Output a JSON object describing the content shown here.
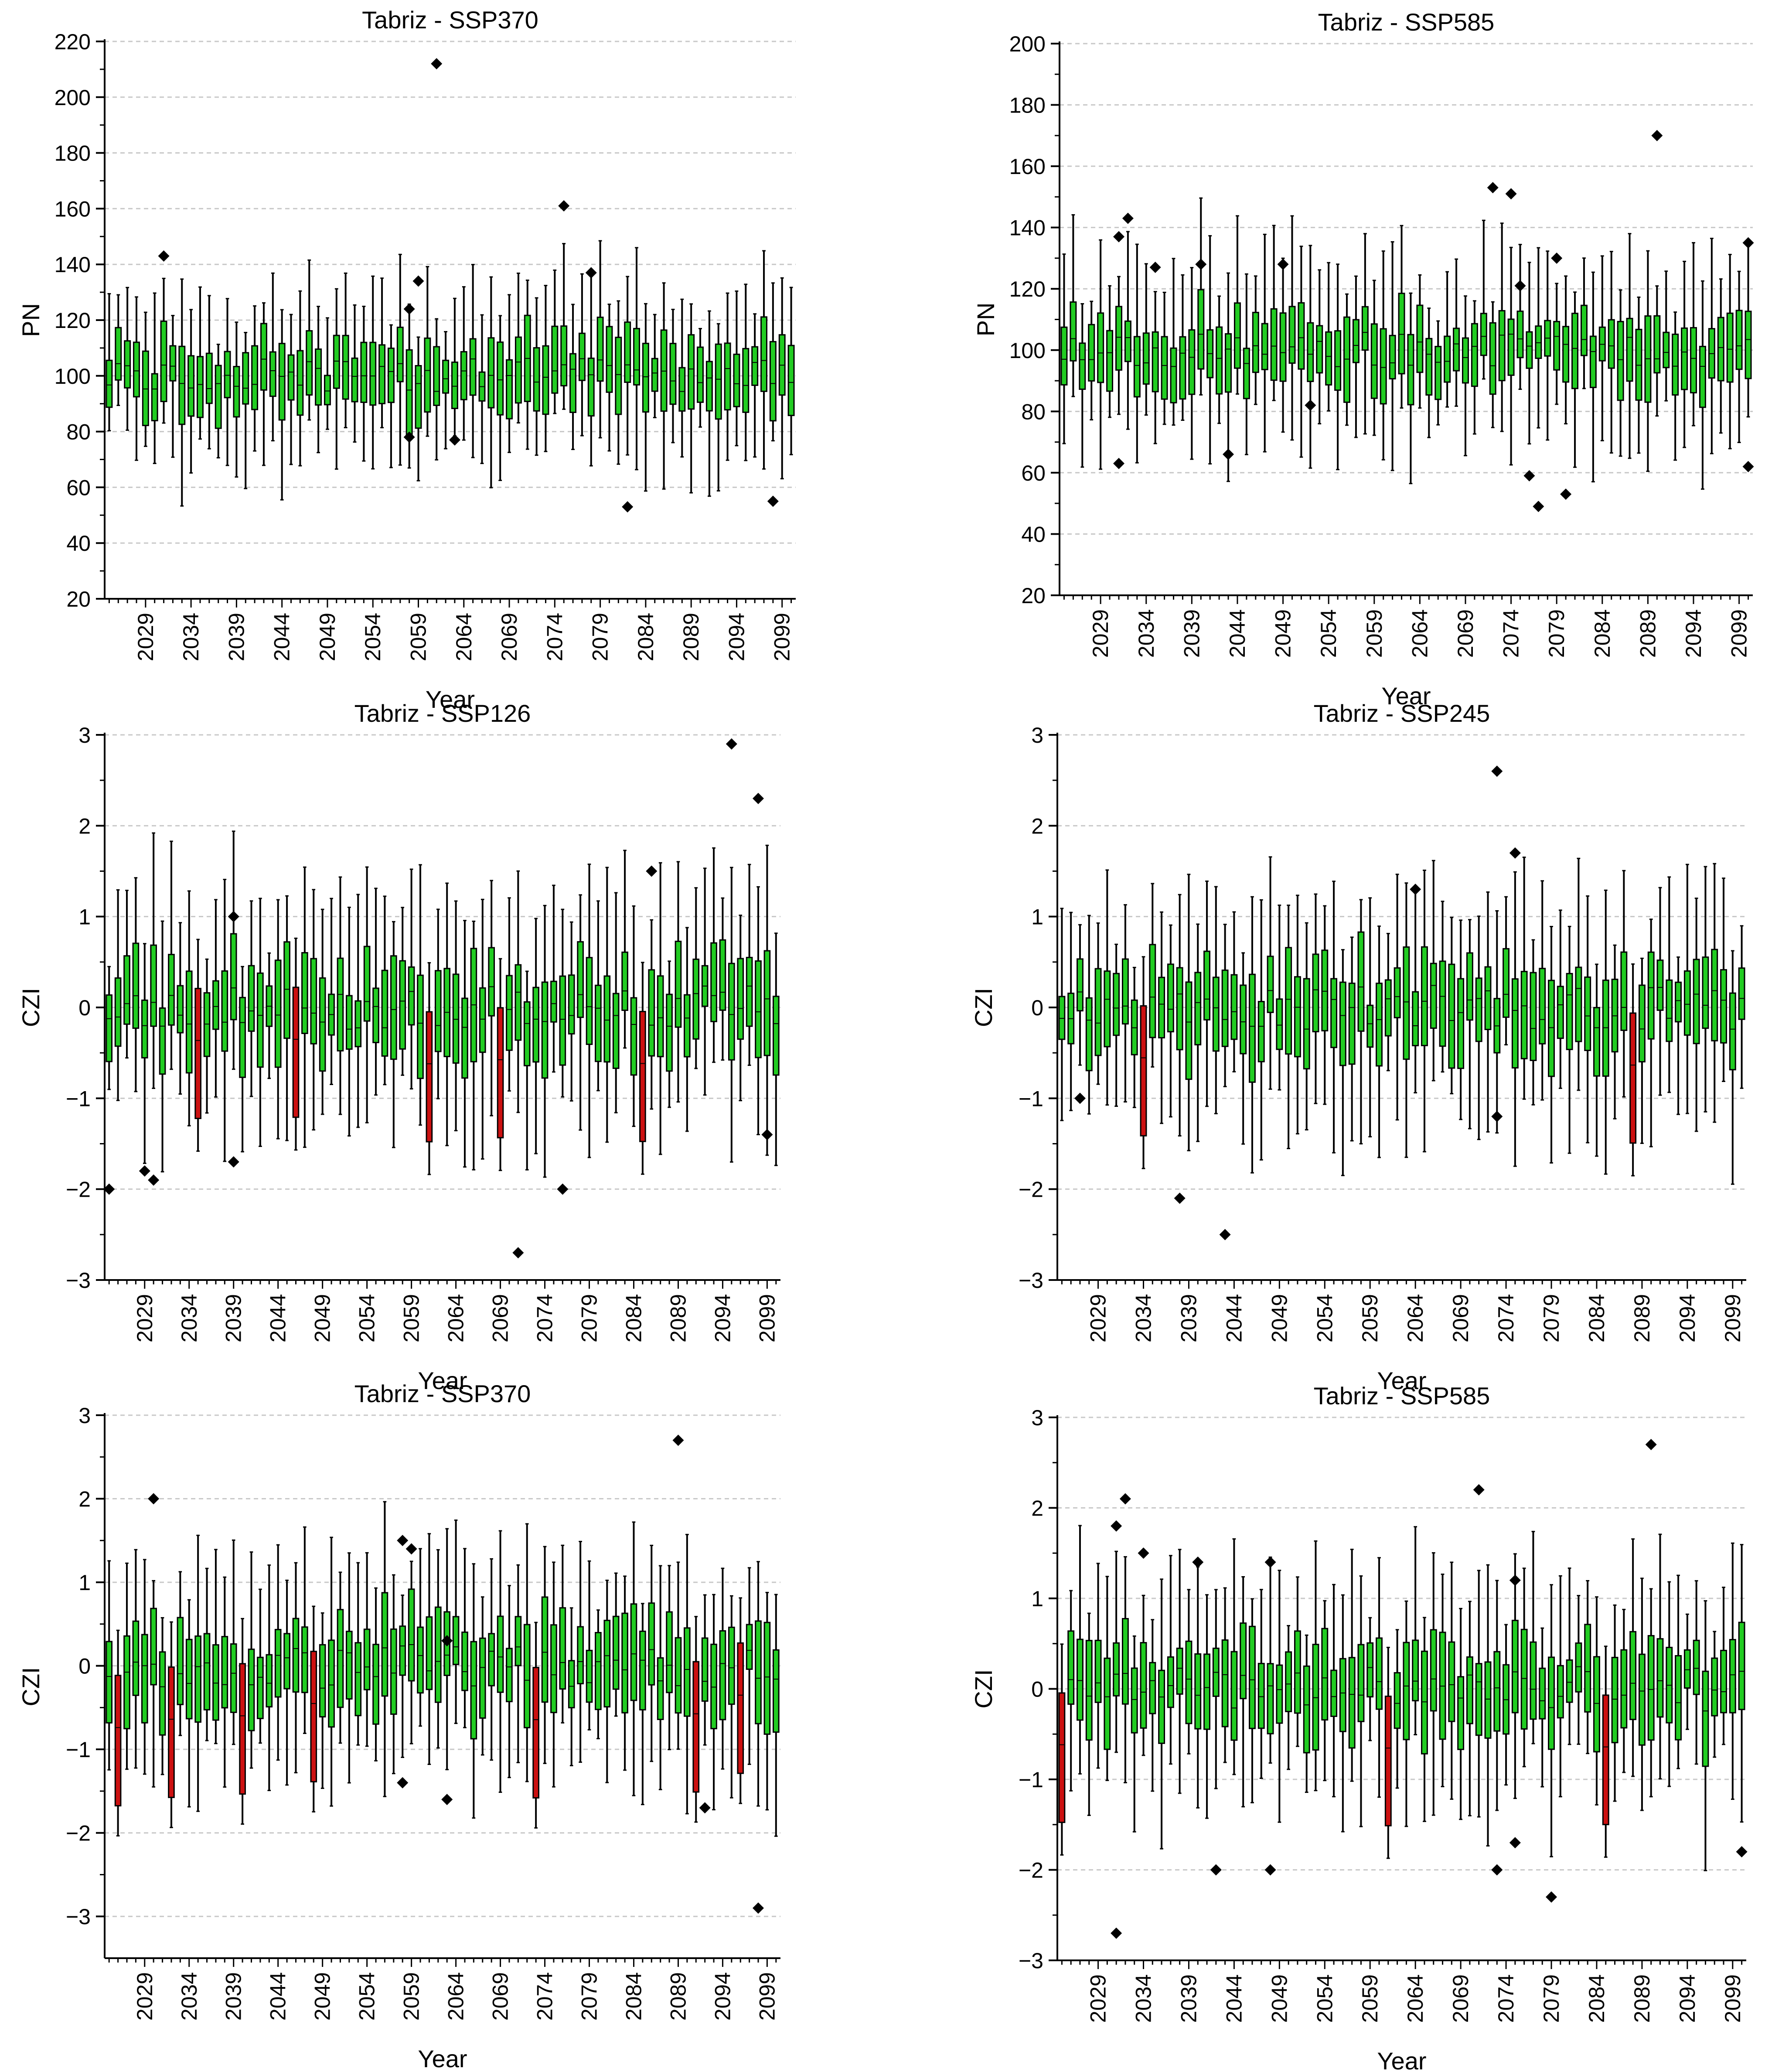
{
  "figure": {
    "colors": {
      "box_normal": "#22cc22",
      "box_drought": "#cc1111",
      "outline": "#000000",
      "grid": "#c8c8c8",
      "outlier": "#000000"
    }
  },
  "chart_data": [
    {
      "type": "box",
      "title": "Tabriz - SSP370",
      "xlabel": "Year",
      "ylabel": "PN",
      "ylim": [
        20,
        220
      ],
      "yticks": [
        20,
        40,
        60,
        80,
        100,
        120,
        140,
        160,
        180,
        200,
        220
      ],
      "xlim": [
        2025,
        2100
      ],
      "xticks": [
        2029,
        2034,
        2039,
        2044,
        2049,
        2054,
        2059,
        2064,
        2069,
        2074,
        2079,
        2084,
        2089,
        2094,
        2099
      ],
      "grid": "horizontal-dashed",
      "seed": 11,
      "center": 100,
      "spread": 14,
      "whisker": 22,
      "red_years": [],
      "outliers": [
        {
          "x": 2031,
          "y": 143
        },
        {
          "x": 2061,
          "y": 212
        },
        {
          "x": 2075,
          "y": 161
        },
        {
          "x": 2078,
          "y": 137
        },
        {
          "x": 2059,
          "y": 134
        },
        {
          "x": 2058,
          "y": 124
        },
        {
          "x": 2058,
          "y": 78
        },
        {
          "x": 2063,
          "y": 77
        },
        {
          "x": 2082,
          "y": 53
        },
        {
          "x": 2098,
          "y": 55
        }
      ]
    },
    {
      "type": "box",
      "title": "Tabriz - SSP585",
      "xlabel": "Year",
      "ylabel": "PN",
      "ylim": [
        20,
        200
      ],
      "yticks": [
        20,
        40,
        60,
        80,
        100,
        120,
        140,
        160,
        180,
        200
      ],
      "xlim": [
        2025,
        2100
      ],
      "xticks": [
        2029,
        2034,
        2039,
        2044,
        2049,
        2054,
        2059,
        2064,
        2069,
        2074,
        2079,
        2084,
        2089,
        2094,
        2099
      ],
      "grid": "horizontal-dashed",
      "seed": 23,
      "center": 100,
      "spread": 13,
      "whisker": 22,
      "red_years": [],
      "outliers": [
        {
          "x": 2031,
          "y": 137
        },
        {
          "x": 2032,
          "y": 143
        },
        {
          "x": 2031,
          "y": 63
        },
        {
          "x": 2035,
          "y": 127
        },
        {
          "x": 2040,
          "y": 128
        },
        {
          "x": 2043,
          "y": 66
        },
        {
          "x": 2049,
          "y": 128
        },
        {
          "x": 2052,
          "y": 82
        },
        {
          "x": 2072,
          "y": 153
        },
        {
          "x": 2074,
          "y": 151
        },
        {
          "x": 2075,
          "y": 121
        },
        {
          "x": 2076,
          "y": 59
        },
        {
          "x": 2077,
          "y": 49
        },
        {
          "x": 2079,
          "y": 130
        },
        {
          "x": 2080,
          "y": 53
        },
        {
          "x": 2090,
          "y": 170
        },
        {
          "x": 2100,
          "y": 135
        },
        {
          "x": 2100,
          "y": 62
        }
      ]
    },
    {
      "type": "box",
      "title": "Tabriz - SSP126",
      "xlabel": "Year",
      "ylabel": "CZI",
      "ylim": [
        -3,
        3
      ],
      "yticks": [
        -3,
        -2,
        -1,
        0,
        1,
        2,
        3
      ],
      "xlim": [
        2025,
        2100
      ],
      "xticks": [
        2029,
        2034,
        2039,
        2044,
        2049,
        2054,
        2059,
        2064,
        2069,
        2074,
        2079,
        2084,
        2089,
        2094,
        2099
      ],
      "grid": "horizontal-dashed",
      "seed": 37,
      "center": 0,
      "spread": 0.55,
      "whisker": 0.9,
      "red_years": [
        2035,
        2046,
        2061,
        2069,
        2085
      ],
      "outliers": [
        {
          "x": 2025,
          "y": -2.0
        },
        {
          "x": 2029,
          "y": -1.8
        },
        {
          "x": 2030,
          "y": -1.9
        },
        {
          "x": 2039,
          "y": 1.0
        },
        {
          "x": 2039,
          "y": -1.7
        },
        {
          "x": 2071,
          "y": -2.7
        },
        {
          "x": 2076,
          "y": -2.0
        },
        {
          "x": 2086,
          "y": 1.5
        },
        {
          "x": 2095,
          "y": 2.9
        },
        {
          "x": 2098,
          "y": 2.3
        },
        {
          "x": 2099,
          "y": -1.4
        }
      ]
    },
    {
      "type": "box",
      "title": "Tabriz - SSP245",
      "xlabel": "Year",
      "ylabel": "CZI",
      "ylim": [
        -3,
        3
      ],
      "yticks": [
        -3,
        -2,
        -1,
        0,
        1,
        2,
        3
      ],
      "xlim": [
        2025,
        2100
      ],
      "xticks": [
        2029,
        2034,
        2039,
        2044,
        2049,
        2054,
        2059,
        2064,
        2069,
        2074,
        2079,
        2084,
        2089,
        2094,
        2099
      ],
      "grid": "horizontal-dashed",
      "seed": 53,
      "center": 0,
      "spread": 0.55,
      "whisker": 0.9,
      "red_years": [
        2034,
        2088
      ],
      "outliers": [
        {
          "x": 2027,
          "y": -1.0
        },
        {
          "x": 2038,
          "y": -2.1
        },
        {
          "x": 2043,
          "y": -2.5
        },
        {
          "x": 2064,
          "y": 1.3
        },
        {
          "x": 2073,
          "y": 2.6
        },
        {
          "x": 2073,
          "y": -1.2
        },
        {
          "x": 2075,
          "y": 1.7
        }
      ]
    },
    {
      "type": "box",
      "title": "Tabriz - SSP370",
      "xlabel": "Year",
      "ylabel": "CZI",
      "ylim": [
        -3.5,
        3
      ],
      "yticks": [
        -3,
        -2,
        -1,
        0,
        1,
        2,
        3
      ],
      "xlim": [
        2025,
        2100
      ],
      "xticks": [
        2029,
        2034,
        2039,
        2044,
        2049,
        2054,
        2059,
        2064,
        2069,
        2074,
        2079,
        2084,
        2089,
        2094,
        2099
      ],
      "grid": "horizontal-dashed",
      "seed": 71,
      "center": 0,
      "spread": 0.6,
      "whisker": 0.9,
      "red_years": [
        2026,
        2032,
        2040,
        2048,
        2073,
        2091,
        2096
      ],
      "outliers": [
        {
          "x": 2030,
          "y": 2.0
        },
        {
          "x": 2058,
          "y": 1.5
        },
        {
          "x": 2059,
          "y": 1.4
        },
        {
          "x": 2058,
          "y": -1.4
        },
        {
          "x": 2063,
          "y": 0.3
        },
        {
          "x": 2063,
          "y": -1.6
        },
        {
          "x": 2089,
          "y": 2.7
        },
        {
          "x": 2092,
          "y": -1.7
        },
        {
          "x": 2098,
          "y": -2.9
        }
      ]
    },
    {
      "type": "box",
      "title": "Tabriz - SSP585",
      "xlabel": "Year",
      "ylabel": "CZI",
      "ylim": [
        -3,
        3
      ],
      "yticks": [
        -3,
        -2,
        -1,
        0,
        1,
        2,
        3
      ],
      "xlim": [
        2025,
        2100
      ],
      "xticks": [
        2029,
        2034,
        2039,
        2044,
        2049,
        2054,
        2059,
        2064,
        2069,
        2074,
        2079,
        2084,
        2089,
        2094,
        2099
      ],
      "grid": "horizontal-dashed",
      "seed": 89,
      "center": 0,
      "spread": 0.55,
      "whisker": 0.9,
      "red_years": [
        2025,
        2061,
        2085
      ],
      "outliers": [
        {
          "x": 2031,
          "y": 1.8
        },
        {
          "x": 2032,
          "y": 2.1
        },
        {
          "x": 2034,
          "y": 1.5
        },
        {
          "x": 2031,
          "y": -2.7
        },
        {
          "x": 2040,
          "y": 1.4
        },
        {
          "x": 2042,
          "y": -2.0
        },
        {
          "x": 2048,
          "y": 1.4
        },
        {
          "x": 2048,
          "y": -2.0
        },
        {
          "x": 2071,
          "y": 2.2
        },
        {
          "x": 2073,
          "y": -2.0
        },
        {
          "x": 2075,
          "y": 1.2
        },
        {
          "x": 2075,
          "y": -1.7
        },
        {
          "x": 2079,
          "y": -2.3
        },
        {
          "x": 2090,
          "y": 2.7
        },
        {
          "x": 2100,
          "y": -1.8
        }
      ]
    }
  ]
}
